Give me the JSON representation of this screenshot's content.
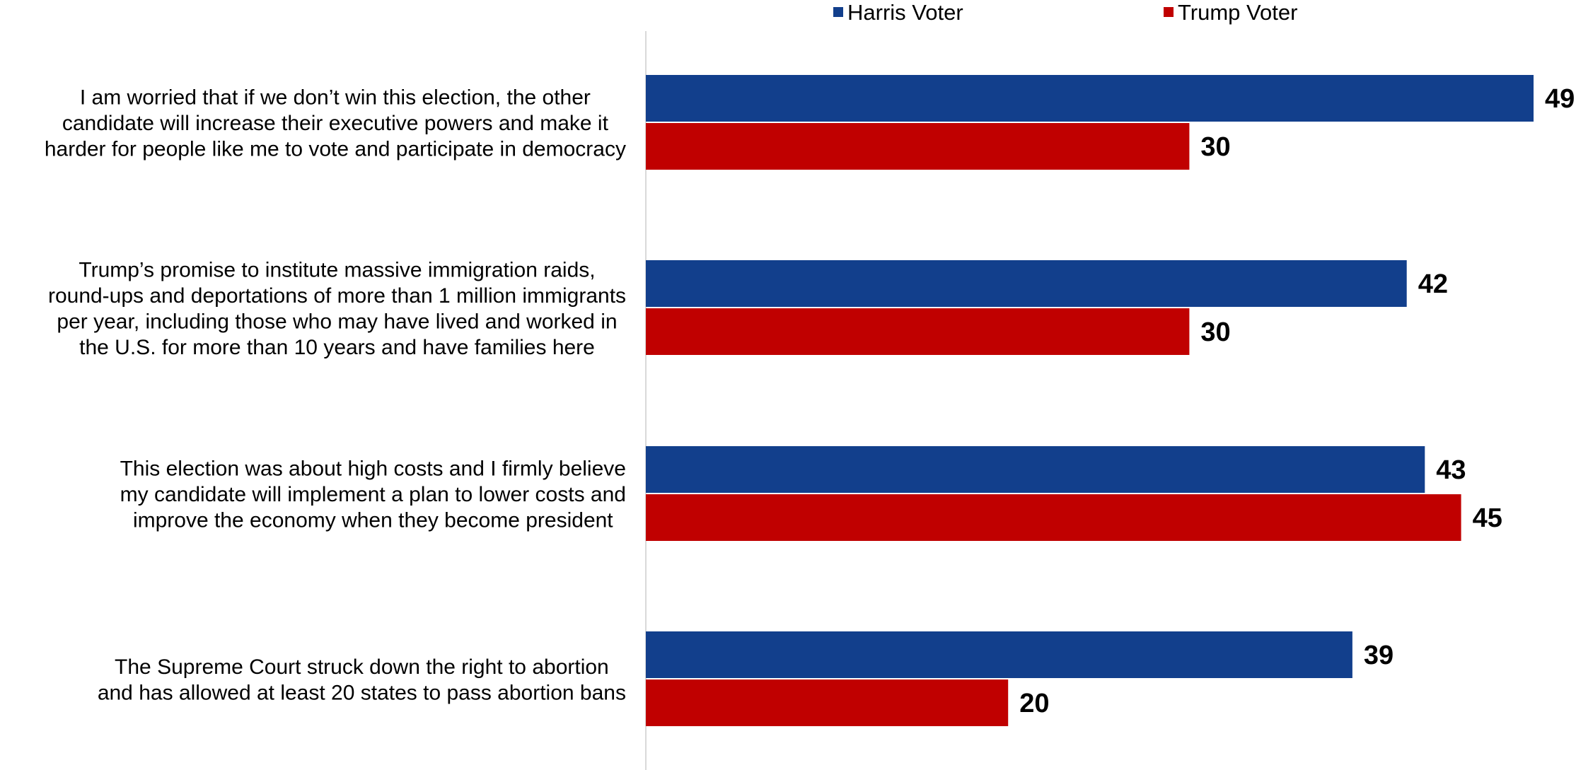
{
  "chart_data": {
    "type": "bar",
    "orientation": "horizontal",
    "categories": [
      "I am worried that if we don’t win this election, the other candidate will increase their executive powers and make it harder for people like me to vote and participate in democracy",
      "Trump’s promise to institute massive immigration raids, round-ups and deportations of more than 1 million immigrants per year, including those who may have lived and worked in the U.S. for more than 10 years and have families here",
      "This election was about high costs and I firmly believe my candidate will implement a plan to lower costs and improve the economy when they become president",
      "The Supreme Court struck down the right to abortion and has allowed at least 20 states to pass abortion bans"
    ],
    "category_lines": [
      [
        "I am worried that if we don’t win this election, the other",
        "candidate will increase their executive powers and make it",
        "harder for people like me to vote and participate in democracy"
      ],
      [
        "Trump’s promise to institute massive immigration raids,",
        "round-ups and deportations of more than 1 million immigrants",
        "per year, including those who may have lived and worked in",
        "the U.S. for more than 10 years and have families here"
      ],
      [
        "This election was about high costs and I firmly believe",
        "my candidate will implement a plan to lower costs and",
        "improve the economy when they become president"
      ],
      [
        "The Supreme Court struck down the right to abortion",
        "and has allowed at least 20 states to pass abortion bans"
      ]
    ],
    "series": [
      {
        "name": "Harris Voter",
        "color": "#123f8c",
        "values": [
          49,
          42,
          43,
          39
        ]
      },
      {
        "name": "Trump Voter",
        "color": "#c00000",
        "values": [
          30,
          30,
          45,
          20
        ]
      }
    ],
    "xlim": [
      0,
      49
    ],
    "legend_position": "top",
    "grid": false
  }
}
